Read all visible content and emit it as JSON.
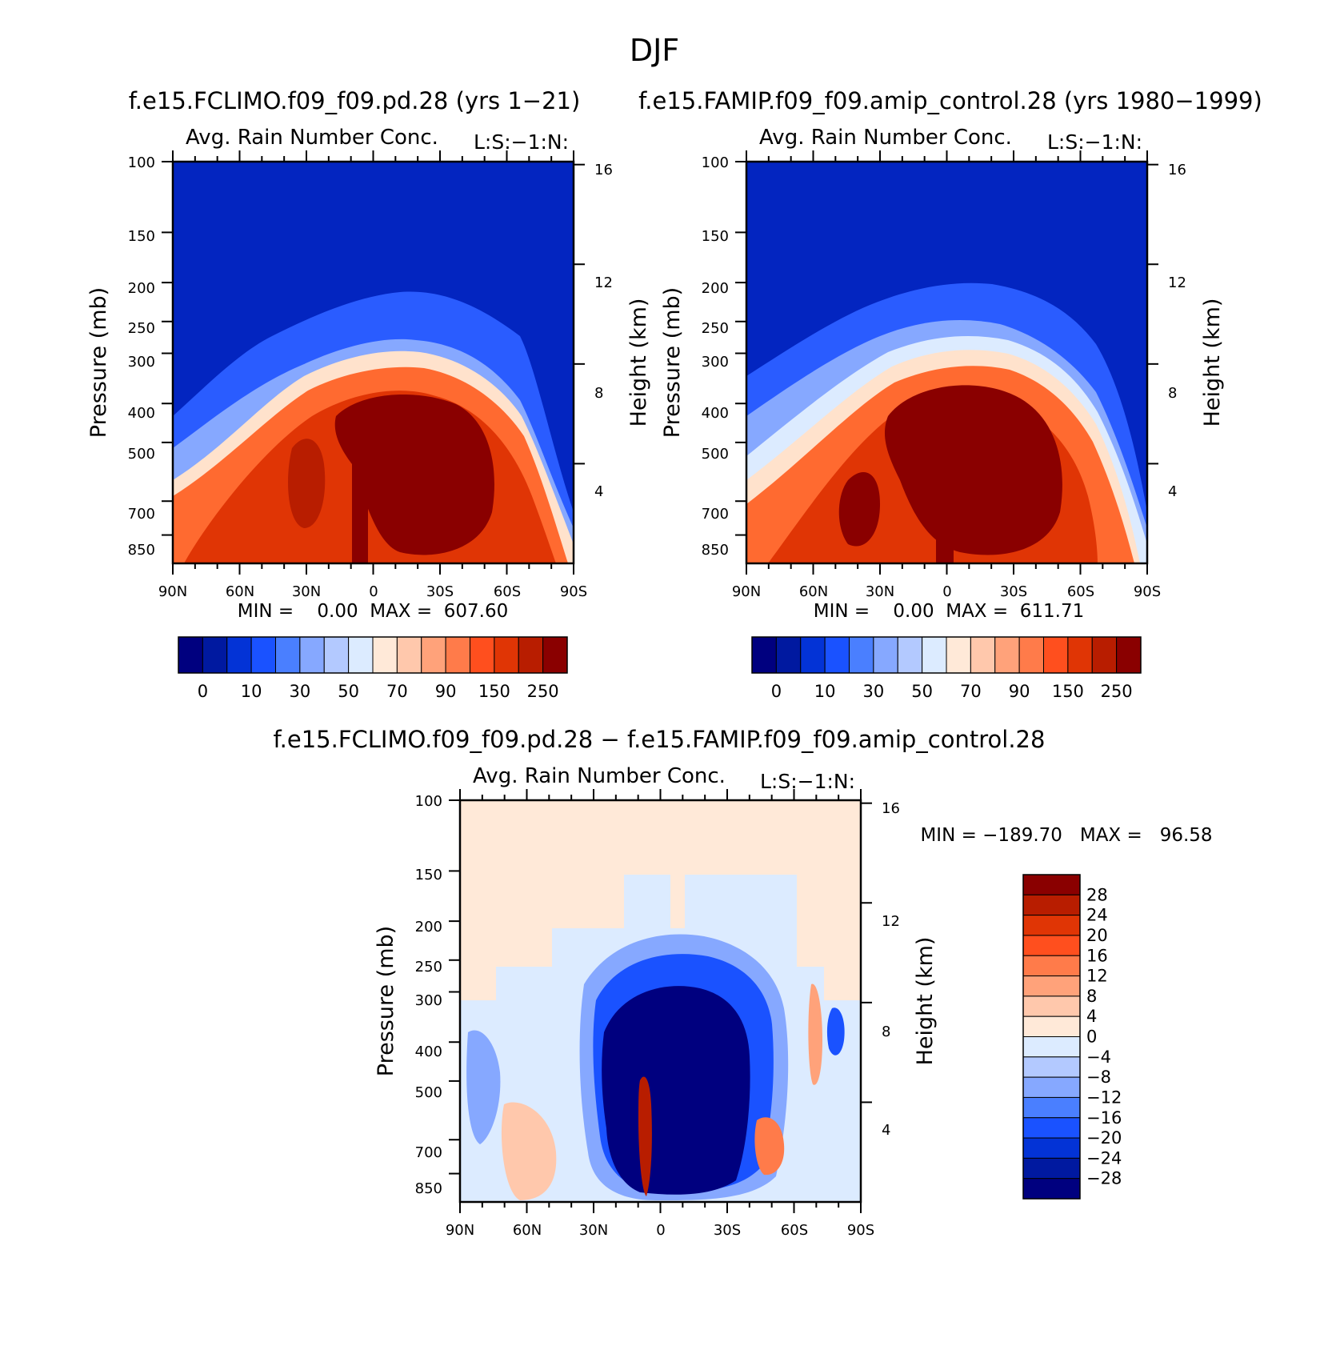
{
  "figure_title": "DJF",
  "chart_data": [
    {
      "type": "heatmap",
      "panel": "top-left",
      "run_title": "f.e15.FCLIMO.f09_f09.pd.28 (yrs 1−21)",
      "title": "Avg. Rain Number Conc.",
      "code_label": "L:S:−1:N:",
      "x_ticks": [
        "90N",
        "60N",
        "30N",
        "0",
        "30S",
        "60S",
        "90S"
      ],
      "y_ticks": [
        "100",
        "150",
        "200",
        "250",
        "300",
        "400",
        "500",
        "700",
        "850"
      ],
      "y2_ticks": [
        "16",
        "12",
        "8",
        "4"
      ],
      "ylabel": "Pressure (mb)",
      "y2label": "Height (km)",
      "ylim": [
        1000,
        100
      ],
      "stats": "MIN =    0.00  MAX =  607.60",
      "min": 0.0,
      "max": 607.6,
      "colorbar_labels": [
        "0",
        "10",
        "30",
        "50",
        "70",
        "90",
        "150",
        "250"
      ],
      "colorbar_colors": [
        "#00007f",
        "#0019a0",
        "#0333d6",
        "#1a52ff",
        "#4a7fff",
        "#86a8ff",
        "#b3c9ff",
        "#dcebff",
        "#ffe9d8",
        "#ffc8ac",
        "#ffa27a",
        "#ff7b4a",
        "#ff4f1e",
        "#e03505",
        "#b81d00",
        "#8a0000"
      ]
    },
    {
      "type": "heatmap",
      "panel": "top-right",
      "run_title": "f.e15.FAMIP.f09_f09.amip_control.28 (yrs 1980−1999)",
      "title": "Avg. Rain Number Conc.",
      "code_label": "L:S:−1:N:",
      "x_ticks": [
        "90N",
        "60N",
        "30N",
        "0",
        "30S",
        "60S",
        "90S"
      ],
      "y_ticks": [
        "100",
        "150",
        "200",
        "250",
        "300",
        "400",
        "500",
        "700",
        "850"
      ],
      "y2_ticks": [
        "16",
        "12",
        "8",
        "4"
      ],
      "ylabel": "Pressure (mb)",
      "y2label": "Height (km)",
      "ylim": [
        1000,
        100
      ],
      "stats": "MIN =    0.00  MAX =  611.71",
      "min": 0.0,
      "max": 611.71,
      "colorbar_labels": [
        "0",
        "10",
        "30",
        "50",
        "70",
        "90",
        "150",
        "250"
      ],
      "colorbar_colors": [
        "#00007f",
        "#0019a0",
        "#0333d6",
        "#1a52ff",
        "#4a7fff",
        "#86a8ff",
        "#b3c9ff",
        "#dcebff",
        "#ffe9d8",
        "#ffc8ac",
        "#ffa27a",
        "#ff7b4a",
        "#ff4f1e",
        "#e03505",
        "#b81d00",
        "#8a0000"
      ]
    },
    {
      "type": "heatmap",
      "panel": "bottom-difference",
      "run_title": "f.e15.FCLIMO.f09_f09.pd.28 − f.e15.FAMIP.f09_f09.amip_control.28",
      "title": "Avg. Rain Number Conc.",
      "code_label": "L:S:−1:N:",
      "x_ticks": [
        "90N",
        "60N",
        "30N",
        "0",
        "30S",
        "60S",
        "90S"
      ],
      "y_ticks": [
        "100",
        "150",
        "200",
        "250",
        "300",
        "400",
        "500",
        "700",
        "850"
      ],
      "y2_ticks": [
        "16",
        "12",
        "8",
        "4"
      ],
      "ylabel": "Pressure (mb)",
      "y2label": "Height (km)",
      "ylim": [
        1000,
        100
      ],
      "stats": "MIN = −189.70   MAX =   96.58",
      "min": -189.7,
      "max": 96.58,
      "colorbar_labels": [
        "28",
        "24",
        "20",
        "16",
        "12",
        "8",
        "4",
        "0",
        "−4",
        "−8",
        "−12",
        "−16",
        "−20",
        "−24",
        "−28"
      ],
      "colorbar_colors": [
        "#8a0000",
        "#b81d00",
        "#e03505",
        "#ff4f1e",
        "#ff7b4a",
        "#ffa27a",
        "#ffc8ac",
        "#ffe9d8",
        "#dcebff",
        "#b3c9ff",
        "#86a8ff",
        "#4a7fff",
        "#1a52ff",
        "#0333d6",
        "#0019a0",
        "#00007f"
      ]
    }
  ]
}
